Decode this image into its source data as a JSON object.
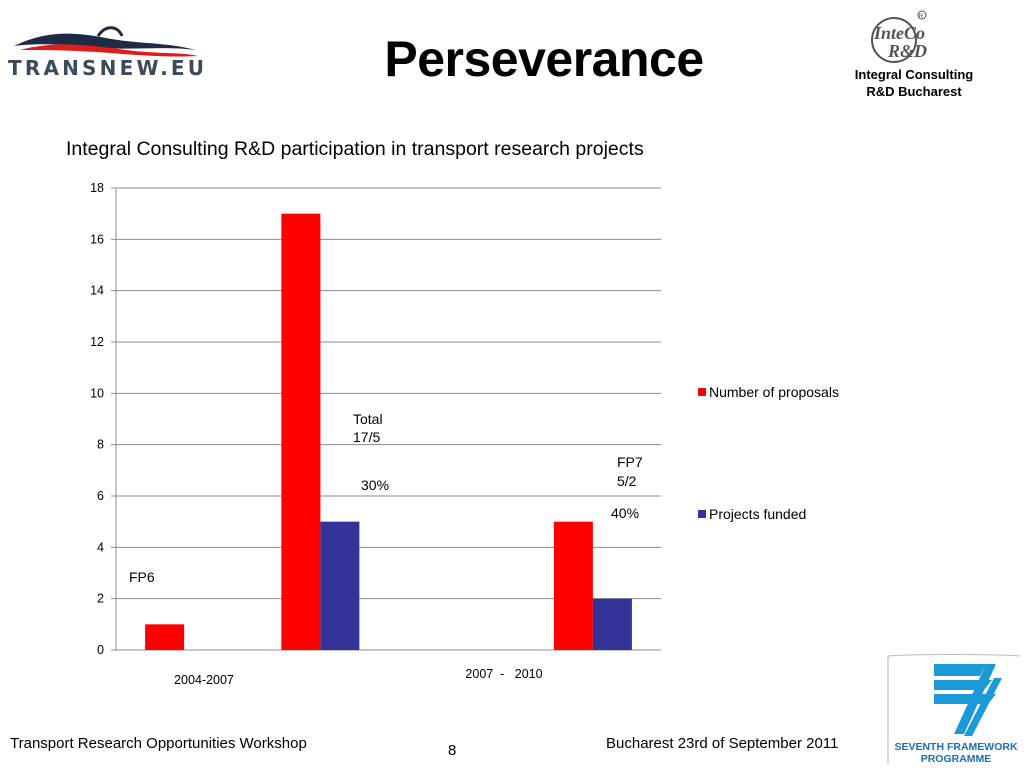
{
  "slide": {
    "title": "Perseverance"
  },
  "logos": {
    "left": {
      "text": "TRANSNEW.EU"
    },
    "right": {
      "text_line1": "InteCo",
      "text_line2": "R&D",
      "caption_line1": "Integral Consulting",
      "caption_line2": "R&D Bucharest"
    },
    "bottom_right": {
      "line1": "SEVENTH FRAMEWORK",
      "line2": "PROGRAMME"
    }
  },
  "chart_data": {
    "type": "bar",
    "title": "Integral Consulting R&D participation in transport research projects",
    "categories": [
      "",
      "",
      "",
      ""
    ],
    "series": [
      {
        "name": "Number of proposals",
        "values": [
          1,
          17,
          0,
          5
        ],
        "color": "#ff0000"
      },
      {
        "name": "Projects funded",
        "values": [
          0,
          5,
          0,
          2
        ],
        "color": "#333399"
      }
    ],
    "ylim": [
      0,
      18
    ],
    "yticks": [
      "0",
      "2",
      "4",
      "6",
      "8",
      "10",
      "12",
      "14",
      "16",
      "18"
    ],
    "grid": true,
    "legend_position": "right",
    "x_period_labels": [
      "2004-2007",
      "2007  -   2010"
    ],
    "annotations": {
      "fp6": "FP6",
      "total_line1": "Total",
      "total_line2": "17/5",
      "pct_30": "30%",
      "fp7_line1": "FP7",
      "fp7_line2": "5/2",
      "pct_40": "40%"
    }
  },
  "footer": {
    "left": "Transport Research Opportunities Workshop",
    "page": "8",
    "right": "Bucharest 23rd of September  2011"
  }
}
